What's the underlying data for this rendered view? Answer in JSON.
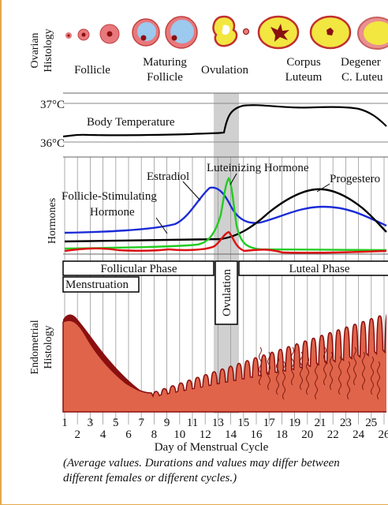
{
  "ovarian": {
    "axis_label_1": "Ovarian",
    "axis_label_2": "Histology",
    "stages": [
      {
        "l1": "Follicle",
        "l2": ""
      },
      {
        "l1": "Maturing",
        "l2": "Follicle"
      },
      {
        "l1": "Ovulation",
        "l2": ""
      },
      {
        "l1": "Corpus",
        "l2": "Luteum"
      },
      {
        "l1": "Degener",
        "l2": "C. Luteu"
      }
    ]
  },
  "temperature": {
    "label": "Body Temperature",
    "tick_high": "37°C",
    "tick_low": "36°C"
  },
  "hormones": {
    "axis_label": "Hormones",
    "estradiol": "Estradiol",
    "lh": "Luteinizing  Hormone",
    "progesterone": "Progestero",
    "fsh_1": "Follicle-Stimulating",
    "fsh_2": "Hormone",
    "colors": {
      "estradiol": "#1a2bd6",
      "lh": "#22cc22",
      "fsh": "#dd1111",
      "progesterone": "#000000"
    }
  },
  "phases": {
    "follicular": "Follicular Phase",
    "luteal": "Luteal Phase",
    "menstruation": "Menstruation",
    "ovulation": "Ovulation"
  },
  "endometrial": {
    "axis_label_1": "Endometrial",
    "axis_label_2": "Histology",
    "fill_color": "#e0644a",
    "edge_color": "#8a1010"
  },
  "days": {
    "odd": [
      "1",
      "3",
      "5",
      "7",
      "9",
      "11",
      "13",
      "15",
      "17",
      "19",
      "21",
      "23",
      "25",
      "2"
    ],
    "even": [
      "2",
      "4",
      "6",
      "8",
      "10",
      "12",
      "14",
      "16",
      "18",
      "20",
      "22",
      "24",
      "26"
    ],
    "axis_title": "Day of Menstrual Cycle"
  },
  "caption": {
    "line1": "(Average values. Durations and values may differ between",
    "line2": "different females or different cycles.)"
  }
}
